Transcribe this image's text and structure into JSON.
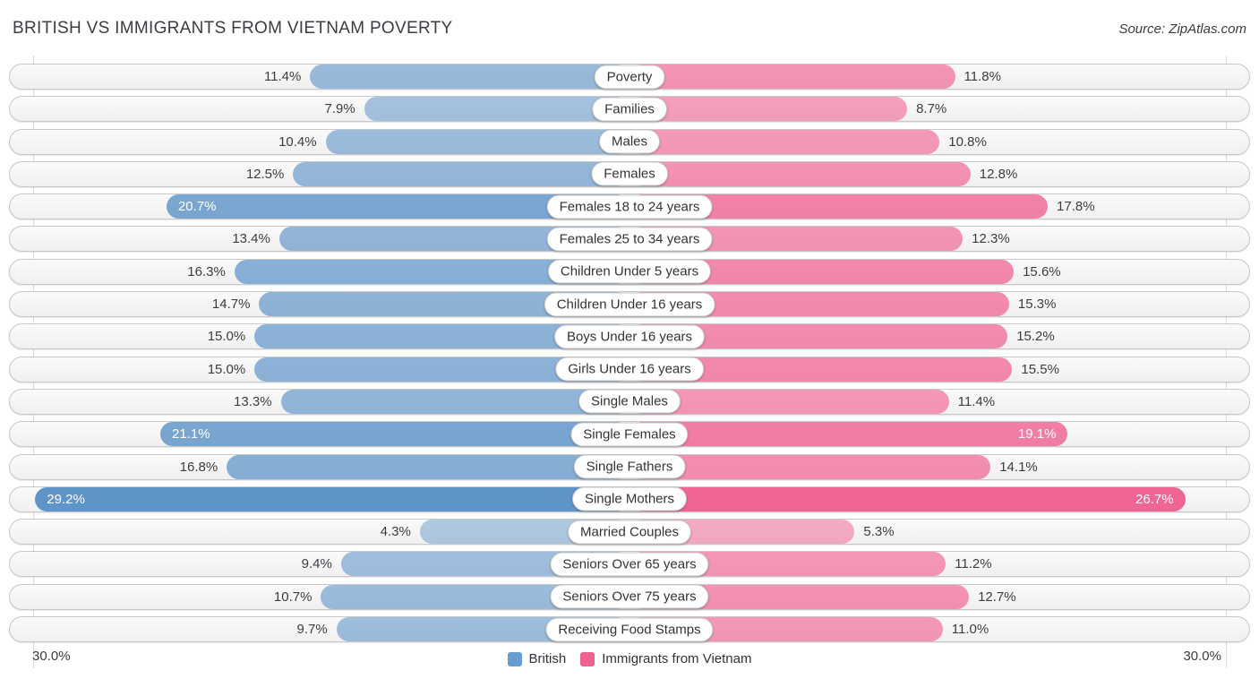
{
  "header": {
    "title": "BRITISH VS IMMIGRANTS FROM VIETNAM POVERTY",
    "source": "Source: ZipAtlas.com"
  },
  "axis": {
    "left_max_label": "30.0%",
    "right_max_label": "30.0%"
  },
  "legend": [
    {
      "label": "British",
      "color": "#689bd1"
    },
    {
      "label": "Immigrants from Vietnam",
      "color": "#ee5f92"
    }
  ],
  "colors": {
    "blue_base_rgb": [
      92,
      146,
      200
    ],
    "pink_base_rgb": [
      240,
      89,
      143
    ],
    "track_bg": "#f5f5f5",
    "track_border": "#c8c8c8"
  },
  "chart_data": {
    "type": "bar",
    "orientation": "bidirectional-horizontal",
    "title": "BRITISH VS IMMIGRANTS FROM VIETNAM POVERTY",
    "value_suffix": "%",
    "xlim": [
      0,
      30
    ],
    "axis_end_labels": [
      "30.0%",
      "30.0%"
    ],
    "legend_position": "bottom-center",
    "categories": [
      "Poverty",
      "Families",
      "Males",
      "Females",
      "Females 18 to 24 years",
      "Females 25 to 34 years",
      "Children Under 5 years",
      "Children Under 16 years",
      "Boys Under 16 years",
      "Girls Under 16 years",
      "Single Males",
      "Single Females",
      "Single Fathers",
      "Single Mothers",
      "Married Couples",
      "Seniors Over 65 years",
      "Seniors Over 75 years",
      "Receiving Food Stamps"
    ],
    "series": [
      {
        "name": "British",
        "values": [
          11.4,
          7.9,
          10.4,
          12.5,
          20.7,
          13.4,
          16.3,
          14.7,
          15.0,
          15.0,
          13.3,
          21.1,
          16.8,
          29.2,
          4.3,
          9.4,
          10.7,
          9.7
        ]
      },
      {
        "name": "Immigrants from Vietnam",
        "values": [
          11.8,
          8.7,
          10.8,
          12.8,
          17.8,
          12.3,
          15.6,
          15.3,
          15.2,
          15.5,
          11.4,
          19.1,
          14.1,
          26.7,
          5.3,
          11.2,
          12.7,
          11.0
        ]
      }
    ]
  }
}
